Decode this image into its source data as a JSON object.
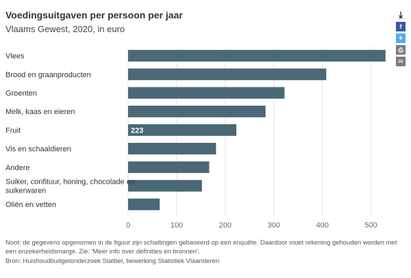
{
  "title": "Voedingsuitgaven per persoon per jaar",
  "subtitle": "Vlaams Gewest, 2020, in euro",
  "toolbar": {
    "download_icon": "download-icon",
    "facebook_icon": "facebook-icon",
    "twitter_icon": "twitter-icon",
    "print_icon": "print-icon",
    "mail_icon": "mail-icon"
  },
  "colors": {
    "bar": "#4a6875",
    "grid": "#e3e3e3",
    "label": "#333333",
    "tick": "#666666",
    "data_label": "#ffffff"
  },
  "chart_data": {
    "type": "bar",
    "orientation": "horizontal",
    "categories": [
      [
        "Vlees"
      ],
      [
        "Brood en graanproducten"
      ],
      [
        "Groenten"
      ],
      [
        "Melk, kaas en eieren"
      ],
      [
        "Fruit"
      ],
      [
        "Vis en schaaldieren"
      ],
      [
        "Andere"
      ],
      [
        "Suiker, confituur, honing, chocolade en",
        "suikerwaren"
      ],
      [
        "Oliën en vetten"
      ]
    ],
    "values": [
      530,
      408,
      322,
      283,
      223,
      181,
      167,
      152,
      65
    ],
    "data_labels": [
      {
        "index": 4,
        "text": "223"
      }
    ],
    "xlim": [
      0,
      550
    ],
    "xticks": [
      0,
      100,
      200,
      300,
      400,
      500
    ],
    "grid": true
  },
  "note": "Noot: de gegevens opgenomen in de figuur zijn schattingen gebaseerd op een enquête. Daardoor moet rekening gehouden worden met een onzekerheidsmarge. Zie: 'Meer info over definities en bronnen'.",
  "source": "Bron: Huishoudbudgetonderzoek Statbel, bewerking Statistiek Vlaanderen"
}
